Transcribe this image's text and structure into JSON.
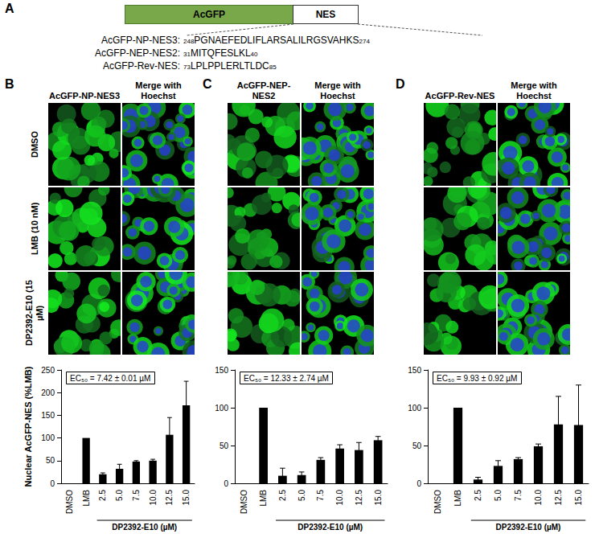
{
  "figure": {
    "panel_labels": [
      "A",
      "B",
      "C",
      "D"
    ],
    "construct": {
      "boxes": [
        "AcGFP",
        "NES"
      ],
      "sequences": [
        {
          "name": "AcGFP-NP-NES3:",
          "start": 248,
          "sequence": "PGNAEFEDLIFLARSALILRGSVAHKS",
          "end": 274
        },
        {
          "name": "AcGFP-NEP-NES2:",
          "start": 31,
          "sequence": "MITQFESLKL",
          "end": 40
        },
        {
          "name": "AcGFP-Rev-NES:",
          "start": 73,
          "sequence": "LPLPPLERLTLDC",
          "end": 85
        }
      ]
    },
    "micrographs": {
      "rows": [
        "DMSO",
        "LMB (10 nM)",
        "DP2392-E10 (15 µM)"
      ],
      "columns": [
        [
          "AcGFP-NP-NES3",
          "Merge with Hoechst"
        ],
        [
          "AcGFP-NEP-NES2",
          "Merge with Hoechst"
        ],
        [
          "AcGFP-Rev-NES",
          "Merge with Hoechst"
        ]
      ]
    }
  },
  "chart_data": [
    {
      "type": "bar",
      "ylabel": "Nuclear AcGFP-NES (%LMB)",
      "xlabel": "DP2392-E10 (µM)",
      "annotation": "EC₅₀ = 7.42 ± 0.01 µM",
      "categories": [
        "DMSO",
        "LMB",
        "2.5",
        "5.0",
        "7.5",
        "10.0",
        "12.5",
        "15.0"
      ],
      "values": [
        0,
        100,
        20,
        32,
        48,
        50,
        107,
        172
      ],
      "errors": [
        0,
        0,
        3,
        10,
        2,
        3,
        38,
        53
      ],
      "color": "#000000",
      "ylim": [
        0,
        250
      ],
      "yticks": [
        0,
        50,
        100,
        150,
        200,
        250
      ],
      "grid": false
    },
    {
      "type": "bar",
      "xlabel": "DP2392-E10 (µM)",
      "annotation": "EC₅₀ = 12.33 ± 2.74 µM",
      "categories": [
        "DMSO",
        "LMB",
        "2.5",
        "5.0",
        "7.5",
        "10.0",
        "12.5",
        "15.0"
      ],
      "values": [
        0,
        100,
        10,
        11,
        31,
        46,
        44,
        57
      ],
      "errors": [
        0,
        0,
        10,
        4,
        3,
        5,
        10,
        5
      ],
      "color": "#000000",
      "ylim": [
        0,
        150
      ],
      "yticks": [
        0,
        50,
        100,
        150
      ],
      "grid": false
    },
    {
      "type": "bar",
      "xlabel": "DP2392-E10 (µM)",
      "annotation": "EC₅₀ = 9.93 ± 0.92 µM",
      "categories": [
        "DMSO",
        "LMB",
        "2.5",
        "5.0",
        "7.5",
        "10.0",
        "12.5",
        "15.0"
      ],
      "values": [
        0,
        100,
        5,
        23,
        32,
        49,
        78,
        77
      ],
      "errors": [
        0,
        0,
        3,
        7,
        2,
        3,
        37,
        53
      ],
      "color": "#000000",
      "ylim": [
        0,
        150
      ],
      "yticks": [
        0,
        50,
        100,
        150
      ],
      "grid": false
    }
  ]
}
